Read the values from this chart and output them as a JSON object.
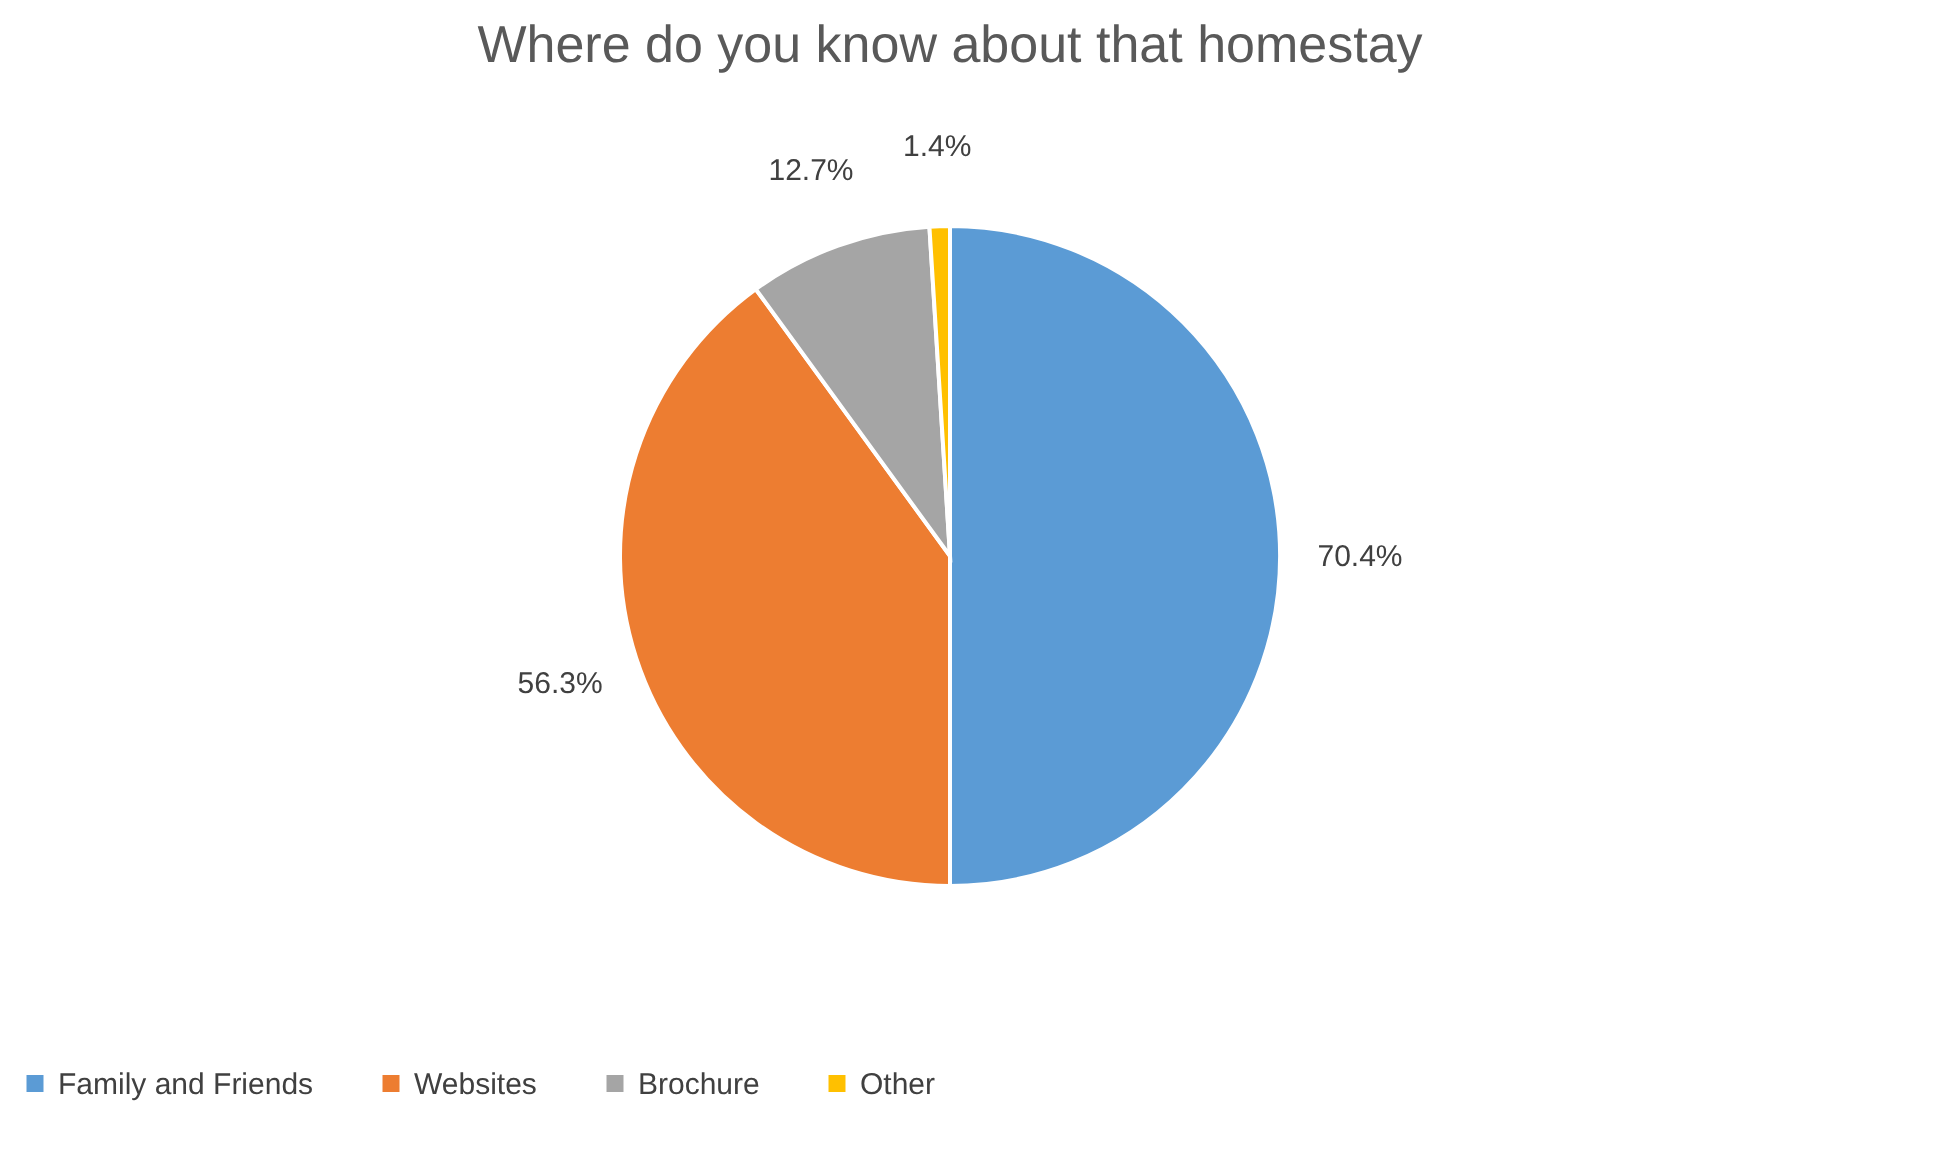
{
  "chart_data": {
    "type": "pie",
    "title": "Where do you know about that homestay",
    "categories": [
      "Family and Friends",
      "Websites",
      "Brochure",
      "Other"
    ],
    "values": [
      70.4,
      56.3,
      12.7,
      1.4
    ],
    "value_labels": [
      "70.4%",
      "56.3%",
      "12.7%",
      "1.4%"
    ],
    "colors": [
      "#5b9bd5",
      "#ed7d31",
      "#a5a5a5",
      "#ffc000"
    ],
    "legend": "bottom"
  }
}
